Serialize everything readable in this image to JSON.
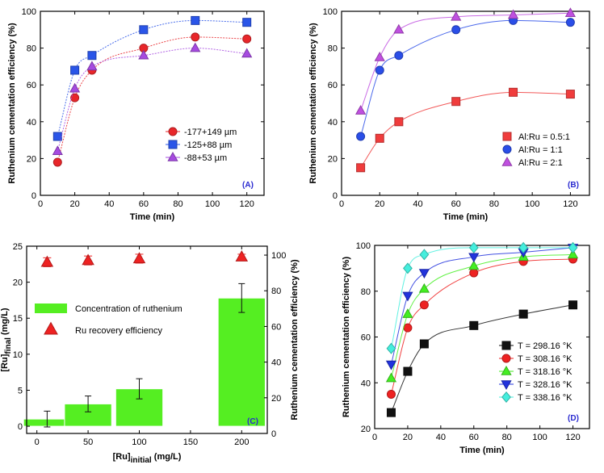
{
  "chart_data": [
    {
      "type": "scatter",
      "panel_label": "(A)",
      "xlabel": "Time (min)",
      "ylabel": "Ruthenium cementation efficiency (%)",
      "xlim": [
        0,
        130
      ],
      "ylim": [
        0,
        100
      ],
      "xticks": [
        0,
        20,
        40,
        60,
        80,
        100,
        120
      ],
      "yticks": [
        0,
        20,
        40,
        60,
        80,
        100
      ],
      "legend_position": "center-right",
      "series": [
        {
          "name": "-177+149 µm",
          "color": "#e8262a",
          "marker": "circle",
          "x": [
            10,
            20,
            30,
            60,
            90,
            120
          ],
          "y": [
            18,
            53,
            68,
            80,
            86,
            85
          ]
        },
        {
          "name": "-125+88 µm",
          "color": "#2a55e8",
          "marker": "square",
          "x": [
            10,
            20,
            30,
            60,
            90,
            120
          ],
          "y": [
            32,
            68,
            76,
            90,
            95,
            94
          ]
        },
        {
          "name": "-88+53 µm",
          "color": "#a64ae0",
          "marker": "triangle",
          "x": [
            10,
            20,
            30,
            60,
            90,
            120
          ],
          "y": [
            24,
            58,
            70,
            76,
            80,
            77
          ]
        }
      ]
    },
    {
      "type": "scatter",
      "panel_label": "(B)",
      "xlabel": "Time (min)",
      "ylabel": "Ruthenium cementation efficiency (%)",
      "xlim": [
        0,
        130
      ],
      "ylim": [
        0,
        100
      ],
      "xticks": [
        0,
        20,
        40,
        60,
        80,
        100,
        120
      ],
      "yticks": [
        0,
        20,
        40,
        60,
        80,
        100
      ],
      "legend_position": "bottom-right",
      "series": [
        {
          "name": "Al:Ru = 0.5:1",
          "color": "#f03c3c",
          "marker": "square",
          "x": [
            10,
            20,
            30,
            60,
            90,
            120
          ],
          "y": [
            15,
            31,
            40,
            51,
            56,
            55
          ]
        },
        {
          "name": "Al:Ru = 1:1",
          "color": "#2a4ee8",
          "marker": "circle",
          "x": [
            10,
            20,
            30,
            60,
            90,
            120
          ],
          "y": [
            32,
            68,
            76,
            90,
            95,
            94
          ]
        },
        {
          "name": "Al:Ru = 2:1",
          "color": "#c050e0",
          "marker": "triangle",
          "x": [
            10,
            20,
            30,
            60,
            90,
            120
          ],
          "y": [
            46,
            75,
            90,
            97,
            98,
            99
          ]
        }
      ]
    },
    {
      "type": "bar",
      "panel_label": "(C)",
      "xlabel": "[Ru]initial (mg/L)",
      "xlabel_main": "[Ru]",
      "xlabel_sub": "initial",
      "xlabel_unit": " (mg/L)",
      "ylabel": "[Ru]final (mg/L)",
      "ylabel_main": "[Ru]",
      "ylabel_sub": "final",
      "ylabel_unit": " (mg/L)",
      "y2label": "Ruthenium cementation efficiency (%)",
      "xlim": [
        -10,
        225
      ],
      "ylim": [
        -1,
        25
      ],
      "y2lim": [
        0,
        105
      ],
      "xticks": [
        0,
        50,
        100,
        150,
        200
      ],
      "yticks": [
        0,
        5,
        10,
        15,
        20,
        25
      ],
      "y2ticks": [
        0,
        20,
        40,
        60,
        80,
        100
      ],
      "bars": {
        "name": "Concentration of ruthenium",
        "color": "#55ee22",
        "x": [
          10,
          50,
          100,
          200
        ],
        "values": [
          1.0,
          3.1,
          5.2,
          17.8
        ],
        "errors": [
          1.1,
          1.1,
          1.4,
          2.0
        ]
      },
      "recovery": {
        "name": "Ru recovery efficiency",
        "color": "#ee2222",
        "marker": "triangle",
        "x": [
          10,
          50,
          100,
          200
        ],
        "values": [
          96,
          97,
          98,
          99
        ],
        "errors": [
          2.5,
          2.5,
          2.5,
          1.5
        ]
      }
    },
    {
      "type": "scatter",
      "panel_label": "(D)",
      "xlabel": "Time (min)",
      "ylabel": "Ruthenium cementation efficiency (%)",
      "xlim": [
        0,
        130
      ],
      "ylim": [
        20,
        100
      ],
      "xticks": [
        0,
        20,
        40,
        60,
        80,
        100,
        120
      ],
      "yticks": [
        20,
        40,
        60,
        80,
        100
      ],
      "legend_position": "bottom-right",
      "series": [
        {
          "name": "T = 298.16 °K",
          "color": "#111111",
          "marker": "square",
          "x": [
            10,
            20,
            30,
            60,
            90,
            120
          ],
          "y": [
            27,
            45,
            57,
            65,
            70,
            74
          ]
        },
        {
          "name": "T = 308.16 °K",
          "color": "#ee2222",
          "marker": "circle",
          "x": [
            10,
            20,
            30,
            60,
            90,
            120
          ],
          "y": [
            35,
            64,
            74,
            88,
            93,
            94
          ]
        },
        {
          "name": "T = 318.16 °K",
          "color": "#44ee22",
          "marker": "triangle",
          "x": [
            10,
            20,
            30,
            60,
            90,
            120
          ],
          "y": [
            42,
            70,
            81,
            91,
            95,
            96
          ]
        },
        {
          "name": "T = 328.16 °K",
          "color": "#2233dd",
          "marker": "triangle-down",
          "x": [
            10,
            20,
            30,
            60,
            90,
            120
          ],
          "y": [
            48,
            78,
            88,
            95,
            97,
            99
          ]
        },
        {
          "name": "T = 338.16 °K",
          "color": "#44eedd",
          "marker": "diamond",
          "x": [
            10,
            20,
            30,
            60,
            90,
            120
          ],
          "y": [
            55,
            90,
            96,
            99,
            99,
            99
          ]
        }
      ]
    }
  ]
}
